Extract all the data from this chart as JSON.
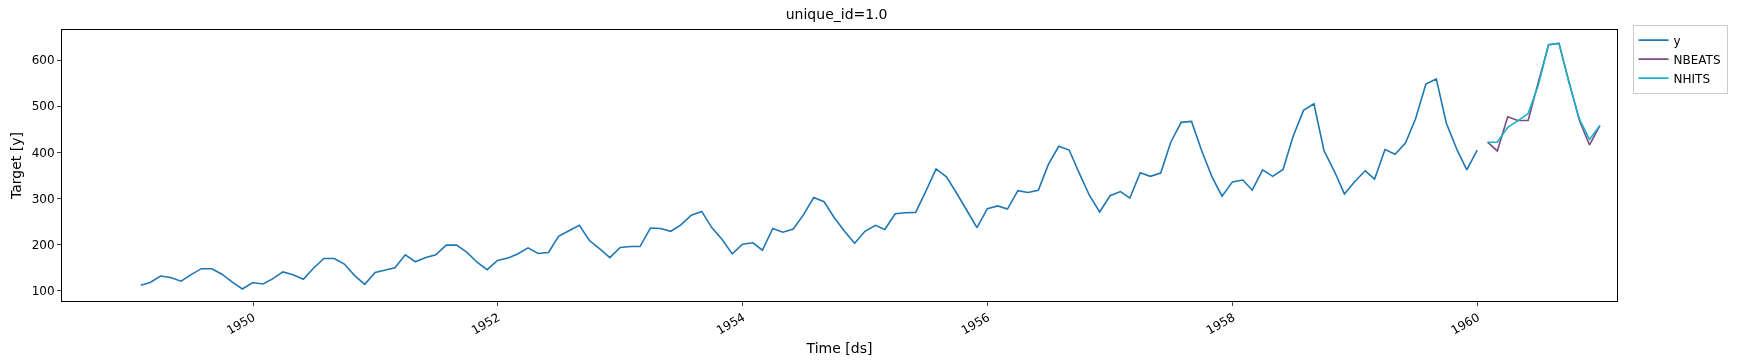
{
  "chart_data": {
    "type": "line",
    "title": "unique_id=1.0",
    "xlabel": "Time [ds]",
    "ylabel": "Target [y]",
    "xlim": [
      "1948-06-10",
      "1961-02-20"
    ],
    "ylim": [
      78,
      665
    ],
    "xticks": [
      {
        "value": "1950-01-01",
        "label": "1950"
      },
      {
        "value": "1952-01-01",
        "label": "1952"
      },
      {
        "value": "1954-01-01",
        "label": "1954"
      },
      {
        "value": "1956-01-01",
        "label": "1956"
      },
      {
        "value": "1958-01-01",
        "label": "1958"
      },
      {
        "value": "1960-01-01",
        "label": "1960"
      }
    ],
    "yticks": [
      100,
      200,
      300,
      400,
      500,
      600
    ],
    "grid": false,
    "legend": "top right",
    "series": [
      {
        "name": "y",
        "color": "#1f77b4",
        "x": [
          "1949-01-31",
          "1949-02-28",
          "1949-03-31",
          "1949-04-30",
          "1949-05-31",
          "1949-06-30",
          "1949-07-31",
          "1949-08-31",
          "1949-09-30",
          "1949-10-31",
          "1949-11-30",
          "1949-12-31",
          "1950-01-31",
          "1950-02-28",
          "1950-03-31",
          "1950-04-30",
          "1950-05-31",
          "1950-06-30",
          "1950-07-31",
          "1950-08-31",
          "1950-09-30",
          "1950-10-31",
          "1950-11-30",
          "1950-12-31",
          "1951-01-31",
          "1951-02-28",
          "1951-03-31",
          "1951-04-30",
          "1951-05-31",
          "1951-06-30",
          "1951-07-31",
          "1951-08-31",
          "1951-09-30",
          "1951-10-31",
          "1951-11-30",
          "1951-12-31",
          "1952-01-31",
          "1952-02-29",
          "1952-03-31",
          "1952-04-30",
          "1952-05-31",
          "1952-06-30",
          "1952-07-31",
          "1952-08-31",
          "1952-09-30",
          "1952-10-31",
          "1952-11-30",
          "1952-12-31",
          "1953-01-31",
          "1953-02-28",
          "1953-03-31",
          "1953-04-30",
          "1953-05-31",
          "1953-06-30",
          "1953-07-31",
          "1953-08-31",
          "1953-09-30",
          "1953-10-31",
          "1953-11-30",
          "1953-12-31",
          "1954-01-31",
          "1954-02-28",
          "1954-03-31",
          "1954-04-30",
          "1954-05-31",
          "1954-06-30",
          "1954-07-31",
          "1954-08-31",
          "1954-09-30",
          "1954-10-31",
          "1954-11-30",
          "1954-12-31",
          "1955-01-31",
          "1955-02-28",
          "1955-03-31",
          "1955-04-30",
          "1955-05-31",
          "1955-06-30",
          "1955-07-31",
          "1955-08-31",
          "1955-09-30",
          "1955-10-31",
          "1955-11-30",
          "1955-12-31",
          "1956-01-31",
          "1956-02-29",
          "1956-03-31",
          "1956-04-30",
          "1956-05-31",
          "1956-06-30",
          "1956-07-31",
          "1956-08-31",
          "1956-09-30",
          "1956-10-31",
          "1956-11-30",
          "1956-12-31",
          "1957-01-31",
          "1957-02-28",
          "1957-03-31",
          "1957-04-30",
          "1957-05-31",
          "1957-06-30",
          "1957-07-31",
          "1957-08-31",
          "1957-09-30",
          "1957-10-31",
          "1957-11-30",
          "1957-12-31",
          "1958-01-31",
          "1958-02-28",
          "1958-03-31",
          "1958-04-30",
          "1958-05-31",
          "1958-06-30",
          "1958-07-31",
          "1958-08-31",
          "1958-09-30",
          "1958-10-31",
          "1958-11-30",
          "1958-12-31",
          "1959-01-31",
          "1959-02-28",
          "1959-03-31",
          "1959-04-30",
          "1959-05-31",
          "1959-06-30",
          "1959-07-31",
          "1959-08-31",
          "1959-09-30",
          "1959-10-31",
          "1959-11-30",
          "1959-12-31"
        ],
        "values": [
          112,
          118,
          132,
          129,
          121,
          135,
          148,
          148,
          136,
          119,
          104,
          118,
          115,
          126,
          141,
          135,
          125,
          149,
          170,
          170,
          158,
          133,
          114,
          140,
          145,
          150,
          178,
          163,
          172,
          178,
          199,
          199,
          184,
          162,
          146,
          166,
          171,
          180,
          193,
          181,
          183,
          218,
          230,
          242,
          209,
          191,
          172,
          194,
          196,
          196,
          236,
          235,
          229,
          243,
          264,
          272,
          237,
          211,
          180,
          201,
          204,
          188,
          235,
          227,
          234,
          264,
          302,
          293,
          259,
          229,
          203,
          229,
          242,
          233,
          267,
          269,
          270,
          315,
          364,
          347,
          312,
          274,
          237,
          278,
          284,
          277,
          317,
          313,
          318,
          374,
          413,
          405,
          355,
          306,
          271,
          306,
          315,
          301,
          356,
          348,
          355,
          422,
          465,
          467,
          404,
          347,
          305,
          336,
          340,
          318,
          362,
          348,
          363,
          435,
          491,
          505,
          404,
          359,
          310,
          337,
          360,
          342,
          406,
          396,
          420,
          472,
          548,
          559,
          463,
          407,
          362,
          405
        ]
      },
      {
        "name": "NBEATS",
        "color": "#7d4b83",
        "x": [
          "1960-01-31",
          "1960-02-29",
          "1960-03-31",
          "1960-04-30",
          "1960-05-31",
          "1960-06-30",
          "1960-07-31",
          "1960-08-31",
          "1960-09-30",
          "1960-10-31",
          "1960-11-30",
          "1960-12-31"
        ],
        "values": [
          422,
          403,
          477,
          469,
          469,
          551,
          633,
          636,
          552,
          469,
          416,
          458
        ]
      },
      {
        "name": "NHITS",
        "color": "#17b3c6",
        "x": [
          "1960-01-31",
          "1960-02-29",
          "1960-03-31",
          "1960-04-30",
          "1960-05-31",
          "1960-06-30",
          "1960-07-31",
          "1960-08-31",
          "1960-09-30",
          "1960-10-31",
          "1960-11-30",
          "1960-12-31"
        ],
        "values": [
          422,
          422,
          454,
          468,
          484,
          545,
          633,
          636,
          550,
          472,
          428,
          458
        ]
      }
    ]
  }
}
